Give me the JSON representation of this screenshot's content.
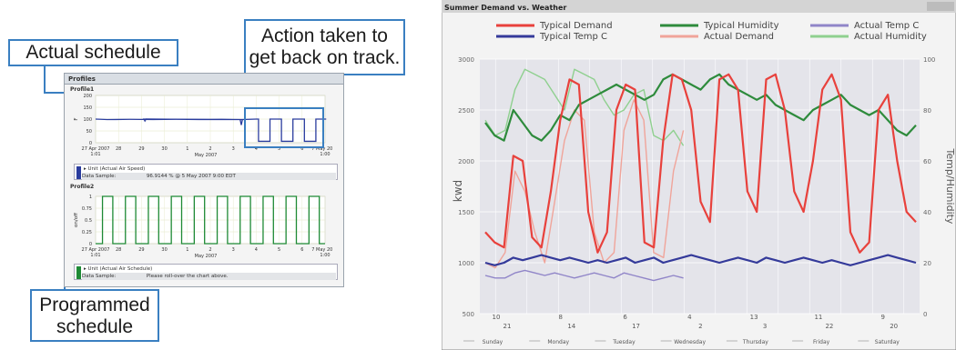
{
  "callouts": {
    "actual": "Actual schedule",
    "action_line1": "Action taken to",
    "action_line2": "get back on track.",
    "programmed_line1": "Programmed",
    "programmed_line2": "schedule"
  },
  "profiles_panel": {
    "title": "Profiles",
    "profile1": {
      "label": "Profile1",
      "ylabel": "F",
      "yticks": [
        "200",
        "150",
        "100",
        "50",
        "0"
      ],
      "xticks": [
        "27 Apr 2007\n1:01",
        "28",
        "29",
        "30",
        "1",
        "2",
        "3",
        "4",
        "5",
        "6",
        "7 May 2007\n1:00"
      ],
      "xlabel": "May 2007",
      "legend_item": "Unit (Actual Air Speed)",
      "sample_label": "Data Sample:",
      "sample_value": "96.9144 % @ 5 May 2007 9:00 EDT",
      "color": "#2a3c9e"
    },
    "profile2": {
      "label": "Profile2",
      "ylabel": "on/off",
      "yticks": [
        "1",
        "0.75",
        "0.5",
        "0.25",
        "0"
      ],
      "xticks": [
        "27 Apr 2007\n1:01",
        "28",
        "29",
        "30",
        "1",
        "2",
        "3",
        "4",
        "5",
        "6",
        "7 May 2007\n1:00"
      ],
      "xlabel": "May 2007",
      "legend_item": "Unit (Actual Air Schedule)",
      "sample_label": "Data Sample:",
      "sample_value": "Please roll-over the chart above.",
      "color": "#1e8a35"
    }
  },
  "chart_data": [
    {
      "type": "line",
      "title": "Profile1",
      "ylabel": "F",
      "ylim": [
        0,
        200
      ],
      "x_labels": [
        "27 Apr 2007 1:01",
        "28",
        "29",
        "30",
        "1",
        "2",
        "3",
        "4",
        "5",
        "6",
        "7 May 2007 1:00"
      ],
      "series": [
        {
          "name": "Unit (Actual Air Speed)",
          "description_points": [
            [
              0,
              100
            ],
            [
              7.0,
              100
            ],
            [
              7.1,
              5
            ],
            [
              7.5,
              5
            ],
            [
              7.6,
              100
            ],
            [
              8.0,
              100
            ],
            [
              8.1,
              5
            ],
            [
              8.5,
              5
            ],
            [
              8.6,
              100
            ],
            [
              9.0,
              100
            ],
            [
              9.1,
              5
            ],
            [
              9.5,
              5
            ],
            [
              9.6,
              100
            ],
            [
              10,
              100
            ]
          ]
        }
      ]
    },
    {
      "type": "line",
      "title": "Profile2",
      "ylabel": "on/off",
      "ylim": [
        0,
        1
      ],
      "x_labels": [
        "27 Apr 2007 1:01",
        "28",
        "29",
        "30",
        "1",
        "2",
        "3",
        "4",
        "5",
        "6",
        "7 May 2007 1:00"
      ],
      "series": [
        {
          "name": "Unit (Actual Air Schedule)",
          "description_points": "square wave: on from ~07:00 to ~18:00 each day, off overnight, 10 cycles"
        }
      ]
    },
    {
      "type": "line",
      "title": "Summer Demand vs. Weather",
      "ylabel": "kwd",
      "y2label": "Temp/Humidity",
      "ylim": [
        500,
        3000
      ],
      "y2lim": [
        0,
        100
      ],
      "yticks": [
        "3000",
        "2500",
        "2000",
        "1500",
        "1000",
        "500"
      ],
      "y2ticks": [
        "100",
        "80",
        "60",
        "40",
        "20",
        "0"
      ],
      "x_date_labels": [
        "10",
        "21",
        "8",
        "14",
        "6",
        "17",
        "4",
        "2",
        "13",
        "3",
        "11",
        "22",
        "9",
        "20"
      ],
      "x_day_labels": [
        "Sunday",
        "Monday",
        "Tuesday",
        "Wednesday",
        "Thursday",
        "Friday",
        "Saturday"
      ],
      "series": [
        {
          "name": "Typical Demand",
          "color": "#e8413c",
          "axis": "left",
          "values": [
            1300,
            1200,
            1150,
            2050,
            2000,
            1250,
            1150,
            1700,
            2400,
            2800,
            2750,
            1500,
            1100,
            1300,
            2500,
            2750,
            2700,
            1200,
            1150,
            2200,
            2850,
            2800,
            2500,
            1600,
            1400,
            2800,
            2850,
            2700,
            1700,
            1500,
            2800,
            2850,
            2500,
            1700,
            1500,
            2000,
            2700,
            2850,
            2600,
            1300,
            1100,
            1200,
            2500,
            2650,
            2000,
            1500,
            1400
          ]
        },
        {
          "name": "Actual Demand",
          "color": "#f0a49a",
          "axis": "left",
          "values": [
            1000,
            950,
            1100,
            1900,
            1700,
            1300,
            1000,
            1600,
            2200,
            2500,
            2400,
            1300,
            1000,
            1100,
            2300,
            2600,
            2400,
            1100,
            1050,
            1900,
            2300
          ]
        },
        {
          "name": "Typical Humidity",
          "color": "#2e8b3c",
          "axis": "right",
          "values": [
            75,
            70,
            68,
            80,
            75,
            70,
            68,
            72,
            78,
            76,
            82,
            84,
            86,
            88,
            90,
            88,
            86,
            84,
            86,
            92,
            94,
            92,
            90,
            88,
            92,
            94,
            90,
            88,
            86,
            84,
            86,
            82,
            80,
            78,
            76,
            80,
            82,
            84,
            86,
            82,
            80,
            78,
            80,
            76,
            72,
            70,
            74
          ]
        },
        {
          "name": "Actual Humidity",
          "color": "#8fd08f",
          "axis": "right",
          "values": [
            76,
            70,
            72,
            88,
            96,
            94,
            92,
            86,
            80,
            96,
            94,
            92,
            84,
            78,
            80,
            86,
            88,
            70,
            68,
            72,
            66
          ]
        },
        {
          "name": "Typical Temp C",
          "color": "#343a9a",
          "axis": "right",
          "values": [
            20,
            19,
            20,
            22,
            21,
            22,
            23,
            22,
            21,
            22,
            21,
            20,
            21,
            20,
            21,
            22,
            20,
            21,
            22,
            20,
            21,
            22,
            23,
            22,
            21,
            20,
            21,
            22,
            21,
            20,
            22,
            21,
            20,
            21,
            22,
            21,
            20,
            21,
            20,
            19,
            20,
            21,
            22,
            23,
            22,
            21,
            20
          ]
        },
        {
          "name": "Actual Temp C",
          "color": "#9085c8",
          "axis": "right",
          "values": [
            15,
            14,
            14,
            16,
            17,
            16,
            15,
            16,
            15,
            14,
            15,
            16,
            15,
            14,
            16,
            15,
            14,
            13,
            14,
            15,
            14
          ]
        }
      ]
    }
  ]
}
